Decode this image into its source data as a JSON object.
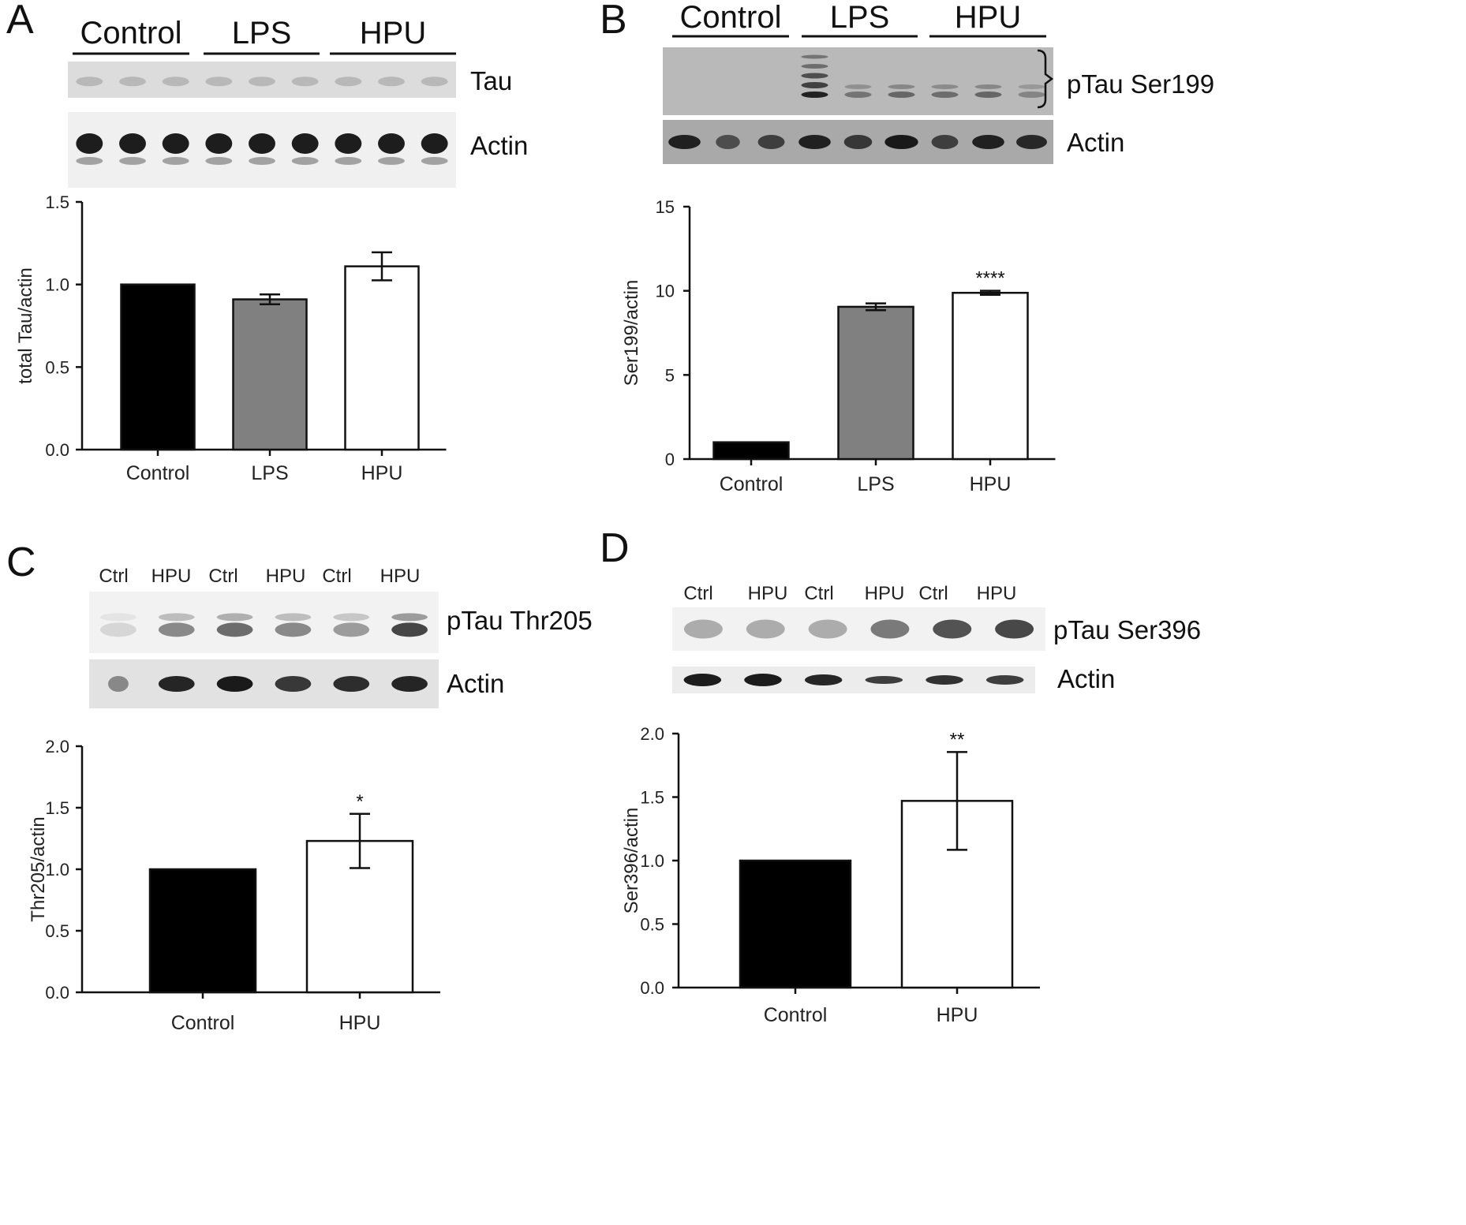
{
  "panels": [
    {
      "id": "A",
      "letter": "A",
      "blot_groups": [
        "Control",
        "LPS",
        "HPU"
      ],
      "blot_lane_labels": [],
      "blots": [
        {
          "name": "Tau",
          "label": "Tau"
        },
        {
          "name": "Actin",
          "label": "Actin"
        }
      ],
      "chart": {
        "type": "bar",
        "categories": [
          "Control",
          "LPS",
          "HPU"
        ],
        "values": [
          1.0,
          0.91,
          1.11
        ],
        "errors": [
          0,
          0.03,
          0.085
        ],
        "colors": [
          "#000000",
          "#808080",
          "#ffffff"
        ],
        "significance": [
          "",
          "",
          ""
        ],
        "ylabel": "total Tau/actin",
        "ylim": [
          0,
          1.5
        ],
        "yticks": [
          "0.0",
          "0.5",
          "1.0",
          "1.5"
        ]
      }
    },
    {
      "id": "B",
      "letter": "B",
      "blot_groups": [
        "Control",
        "LPS",
        "HPU"
      ],
      "blot_lane_labels": [],
      "blots": [
        {
          "name": "pTau Ser199",
          "label": "pTau Ser199"
        },
        {
          "name": "Actin",
          "label": "Actin"
        }
      ],
      "chart": {
        "type": "bar",
        "categories": [
          "Control",
          "LPS",
          "HPU"
        ],
        "values": [
          1.0,
          9.05,
          9.88
        ],
        "errors": [
          0,
          0.2,
          0.12
        ],
        "colors": [
          "#000000",
          "#808080",
          "#ffffff"
        ],
        "significance": [
          "",
          "",
          "****"
        ],
        "ylabel": "Ser199/actin",
        "ylim": [
          0,
          15
        ],
        "yticks": [
          "0",
          "5",
          "10",
          "15"
        ]
      }
    },
    {
      "id": "C",
      "letter": "C",
      "blot_groups": [],
      "blot_lane_labels": [
        "Ctrl",
        "HPU",
        "Ctrl",
        "HPU",
        "Ctrl",
        "HPU"
      ],
      "blots": [
        {
          "name": "pTau Thr205",
          "label": "pTau Thr205"
        },
        {
          "name": "Actin",
          "label": "Actin"
        }
      ],
      "chart": {
        "type": "bar",
        "categories": [
          "Control",
          "HPU"
        ],
        "values": [
          1.0,
          1.23
        ],
        "errors": [
          0,
          0.22
        ],
        "colors": [
          "#000000",
          "#ffffff"
        ],
        "significance": [
          "",
          "*"
        ],
        "ylabel": "Thr205/actin",
        "ylim": [
          0,
          2.0
        ],
        "yticks": [
          "0.0",
          "0.5",
          "1.0",
          "1.5",
          "2.0"
        ]
      }
    },
    {
      "id": "D",
      "letter": "D",
      "blot_groups": [],
      "blot_lane_labels": [
        "Ctrl",
        "HPU",
        "Ctrl",
        "HPU",
        "Ctrl",
        "HPU"
      ],
      "blots": [
        {
          "name": "pTau Ser396",
          "label": "pTau Ser396"
        },
        {
          "name": "Actin",
          "label": "Actin"
        }
      ],
      "chart": {
        "type": "bar",
        "categories": [
          "Control",
          "HPU"
        ],
        "values": [
          1.0,
          1.47
        ],
        "errors": [
          0,
          0.385
        ],
        "colors": [
          "#000000",
          "#ffffff"
        ],
        "significance": [
          "",
          "**"
        ],
        "ylabel": "Ser396/actin",
        "ylim": [
          0,
          2.0
        ],
        "yticks": [
          "0.0",
          "0.5",
          "1.0",
          "1.5",
          "2.0"
        ]
      }
    }
  ],
  "chart_data": [
    {
      "type": "bar",
      "categories": [
        "Control",
        "LPS",
        "HPU"
      ],
      "values": [
        1.0,
        0.91,
        1.11
      ],
      "errors": [
        0,
        0.03,
        0.085
      ],
      "ylabel": "total Tau/actin",
      "ylim": [
        0,
        1.5
      ]
    },
    {
      "type": "bar",
      "categories": [
        "Control",
        "LPS",
        "HPU"
      ],
      "values": [
        1.0,
        9.05,
        9.88
      ],
      "errors": [
        0,
        0.2,
        0.12
      ],
      "ylabel": "Ser199/actin",
      "ylim": [
        0,
        15
      ]
    },
    {
      "type": "bar",
      "categories": [
        "Control",
        "HPU"
      ],
      "values": [
        1.0,
        1.23
      ],
      "errors": [
        0,
        0.22
      ],
      "ylabel": "Thr205/actin",
      "ylim": [
        0,
        2.0
      ]
    },
    {
      "type": "bar",
      "categories": [
        "Control",
        "HPU"
      ],
      "values": [
        1.0,
        1.47
      ],
      "errors": [
        0,
        0.385
      ],
      "ylabel": "Ser396/actin",
      "ylim": [
        0,
        2.0
      ]
    }
  ]
}
